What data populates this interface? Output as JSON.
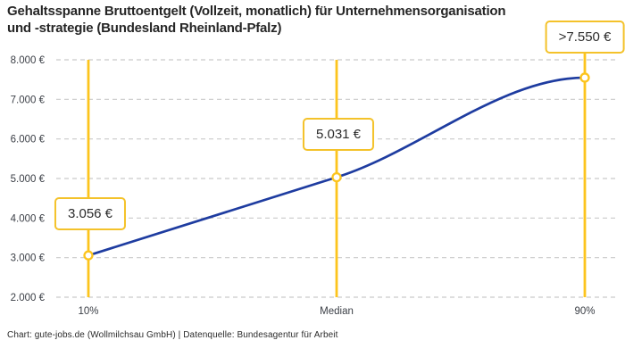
{
  "title": {
    "line1": "Gehaltsspanne Bruttoentgelt (Vollzeit, monatlich) für Unternehmensorganisation",
    "line2": "und -strategie (Bundesland Rheinland-Pfalz)"
  },
  "footer": "Chart: gute-jobs.de (Wollmilchsau GmbH) | Datenquelle: Bundesagentur für Arbeit",
  "chart_data": {
    "type": "line",
    "title": "Gehaltsspanne Bruttoentgelt (Vollzeit, monatlich) für Unternehmensorganisation und -strategie (Bundesland Rheinland-Pfalz)",
    "categories": [
      "10%",
      "Median",
      "90%"
    ],
    "values": [
      3056,
      5031,
      7550
    ],
    "point_labels": [
      "3.056 €",
      "5.031 €",
      ">7.550 €"
    ],
    "y_ticks": [
      {
        "value": 2000,
        "label": "2.000 €"
      },
      {
        "value": 3000,
        "label": "3.000 €"
      },
      {
        "value": 4000,
        "label": "4.000 €"
      },
      {
        "value": 5000,
        "label": "5.000 €"
      },
      {
        "value": 6000,
        "label": "6.000 €"
      },
      {
        "value": 7000,
        "label": "7.000 €"
      },
      {
        "value": 8000,
        "label": "8.000 €"
      }
    ],
    "ylim": [
      2000,
      8000
    ],
    "grid": "horizontal-dashed",
    "legend": "none",
    "colors": {
      "line": "#1e3ca0",
      "accent_yellow": "#fcc41d",
      "grid": "#c9c9c9",
      "tick_text": "#3a3e45",
      "marker_fill": "#ffffff"
    }
  }
}
